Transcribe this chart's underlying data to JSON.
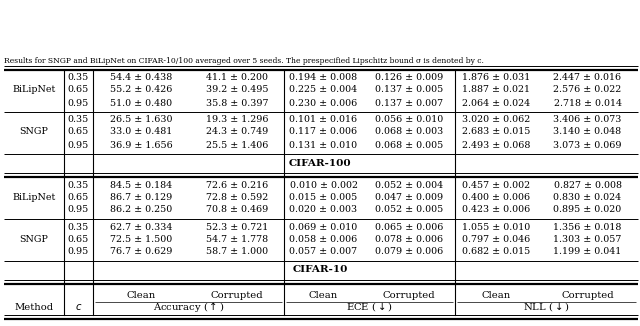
{
  "cifar10_sngp": [
    [
      "0.95",
      "76.7 ± 0.629",
      "58.7 ± 1.000",
      "0.057 ± 0.007",
      "0.079 ± 0.006",
      "0.682 ± 0.015",
      "1.199 ± 0.041"
    ],
    [
      "0.65",
      "72.5 ± 1.500",
      "54.7 ± 1.778",
      "0.058 ± 0.006",
      "0.078 ± 0.006",
      "0.797 ± 0.046",
      "1.303 ± 0.057"
    ],
    [
      "0.35",
      "62.7 ± 0.334",
      "52.3 ± 0.721",
      "0.069 ± 0.010",
      "0.065 ± 0.006",
      "1.055 ± 0.010",
      "1.356 ± 0.018"
    ]
  ],
  "cifar10_bilipnet": [
    [
      "0.95",
      "86.2 ± 0.250",
      "70.8 ± 0.469",
      "0.020 ± 0.003",
      "0.052 ± 0.005",
      "0.423 ± 0.006",
      "0.895 ± 0.020"
    ],
    [
      "0.65",
      "86.7 ± 0.129",
      "72.8 ± 0.592",
      "0.015 ± 0.005",
      "0.047 ± 0.009",
      "0.400 ± 0.006",
      "0.830 ± 0.024"
    ],
    [
      "0.35",
      "84.5 ± 0.184",
      "72.6 ± 0.216",
      "0.010 ± 0.002",
      "0.052 ± 0.004",
      "0.457 ± 0.002",
      "0.827 ± 0.008"
    ]
  ],
  "cifar100_sngp": [
    [
      "0.95",
      "36.9 ± 1.656",
      "25.5 ± 1.406",
      "0.131 ± 0.010",
      "0.068 ± 0.005",
      "2.493 ± 0.068",
      "3.073 ± 0.069"
    ],
    [
      "0.65",
      "33.0 ± 0.481",
      "24.3 ± 0.749",
      "0.117 ± 0.006",
      "0.068 ± 0.003",
      "2.683 ± 0.015",
      "3.140 ± 0.048"
    ],
    [
      "0.35",
      "26.5 ± 1.630",
      "19.3 ± 1.296",
      "0.101 ± 0.016",
      "0.056 ± 0.010",
      "3.020 ± 0.062",
      "3.406 ± 0.073"
    ]
  ],
  "cifar100_bilipnet": [
    [
      "0.95",
      "51.0 ± 0.480",
      "35.8 ± 0.397",
      "0.230 ± 0.006",
      "0.137 ± 0.007",
      "2.064 ± 0.024",
      "2.718 ± 0.014"
    ],
    [
      "0.65",
      "55.2 ± 0.426",
      "39.2 ± 0.495",
      "0.225 ± 0.004",
      "0.137 ± 0.005",
      "1.887 ± 0.021",
      "2.576 ± 0.022"
    ],
    [
      "0.35",
      "54.4 ± 0.438",
      "41.1 ± 0.200",
      "0.194 ± 0.008",
      "0.126 ± 0.009",
      "1.876 ± 0.031",
      "2.447 ± 0.016"
    ]
  ],
  "footer": "Results for SNGP and BiLipNet on CIFAR-10/100 averaged over 5 seeds. The prespecified Lipschitz bound σ is denoted by c.",
  "bg_color": "#ffffff",
  "text_color": "#000000",
  "font_size": 6.8,
  "header_font_size": 7.2,
  "bold_font_size": 7.5
}
